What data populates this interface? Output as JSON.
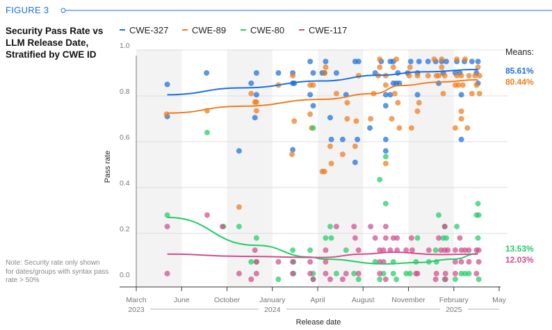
{
  "figure_label": "FIGURE 3",
  "title": "Security Pass Rate vs LLM Release Date, Stratified by CWE ID",
  "note": "Note: Security rate only shown for dates/groups with syntax pass rate > 50%",
  "chart_data": {
    "type": "scatter",
    "xlabel": "Release date",
    "ylabel": "Pass rate",
    "x_unit": "months since March 2023",
    "ylim": [
      0,
      1.0
    ],
    "yticks": [
      "0.0",
      "0.2",
      "0.4",
      "0.6",
      "0.8",
      "1.0"
    ],
    "xticks": [
      {
        "m": 0,
        "label": "March"
      },
      {
        "m": 3,
        "label": "June"
      },
      {
        "m": 7,
        "label": "October"
      },
      {
        "m": 10,
        "label": "January"
      },
      {
        "m": 13,
        "label": "April"
      },
      {
        "m": 17,
        "label": "August"
      },
      {
        "m": 20,
        "label": "November"
      },
      {
        "m": 23,
        "label": "February"
      },
      {
        "m": 26,
        "label": "May"
      }
    ],
    "years": [
      {
        "m": 0,
        "label": "2023"
      },
      {
        "m": 10,
        "label": "2024"
      },
      {
        "m": 23,
        "label": "2025"
      }
    ],
    "means_label": "Means:",
    "series": [
      {
        "name": "CWE-327",
        "color": "#1a6fdc",
        "mean": "85.61%",
        "trend": [
          [
            2.05,
            0.805
          ],
          [
            8,
            0.835
          ],
          [
            13.4,
            0.865
          ],
          [
            18,
            0.89
          ],
          [
            21,
            0.905
          ],
          [
            24.6,
            0.915
          ]
        ],
        "points": [
          [
            2.05,
            0.85
          ],
          [
            2.05,
            0.71
          ],
          [
            5.2,
            0.9
          ],
          [
            8.6,
            0.855
          ],
          [
            8.95,
            0.9
          ],
          [
            8.95,
            0.805
          ],
          [
            8.85,
            0.705
          ],
          [
            7.8,
            0.56
          ],
          [
            10.4,
            0.9
          ],
          [
            11.35,
            0.9
          ],
          [
            11.35,
            0.855
          ],
          [
            11.45,
            0.855
          ],
          [
            11.35,
            0.565
          ],
          [
            12.5,
            0.95
          ],
          [
            12.7,
            0.9
          ],
          [
            12.5,
            0.805
          ],
          [
            12.7,
            0.757
          ],
          [
            13.4,
            0.9
          ],
          [
            13.7,
            0.95
          ],
          [
            13.6,
            0.9
          ],
          [
            14.65,
            0.9
          ],
          [
            15.5,
            0.805
          ],
          [
            14.1,
            0.705
          ],
          [
            14.2,
            0.61
          ],
          [
            15.2,
            0.61
          ],
          [
            16.5,
            0.61
          ],
          [
            16.3,
            0.51
          ],
          [
            16.3,
            0.95
          ],
          [
            16.6,
            0.95
          ],
          [
            17.45,
            0.66
          ],
          [
            17.8,
            0.9
          ],
          [
            18.2,
            0.95
          ],
          [
            18.8,
            0.95
          ],
          [
            18.5,
            0.805
          ],
          [
            18.8,
            0.805
          ],
          [
            18.5,
            0.757
          ],
          [
            18.5,
            0.61
          ],
          [
            18.5,
            0.56
          ],
          [
            19.0,
            0.95
          ],
          [
            19.0,
            0.855
          ],
          [
            19.2,
            0.855
          ],
          [
            19.4,
            0.855
          ],
          [
            19.3,
            0.9
          ],
          [
            20.15,
            0.95
          ],
          [
            20.7,
            0.95
          ],
          [
            19.95,
            0.9
          ],
          [
            20.6,
            0.9
          ],
          [
            20.6,
            0.805
          ],
          [
            21.3,
            0.95
          ],
          [
            21.8,
            0.95
          ],
          [
            22.2,
            0.95
          ],
          [
            22.5,
            0.95
          ],
          [
            22.0,
            0.855
          ],
          [
            22.3,
            0.9
          ],
          [
            23.2,
            0.95
          ],
          [
            23.7,
            0.95
          ],
          [
            24.2,
            0.95
          ],
          [
            24.6,
            0.95
          ],
          [
            23.1,
            0.9
          ],
          [
            23.4,
            0.9
          ],
          [
            24.5,
            0.9
          ],
          [
            23.5,
            0.805
          ],
          [
            23.5,
            0.61
          ],
          [
            24.6,
            0.855
          ]
        ]
      },
      {
        "name": "CWE-89",
        "color": "#f07c1a",
        "mean": "80.44%",
        "trend": [
          [
            2.05,
            0.725
          ],
          [
            8,
            0.755
          ],
          [
            13.4,
            0.785
          ],
          [
            17.7,
            0.81
          ],
          [
            19.5,
            0.845
          ],
          [
            22,
            0.86
          ],
          [
            24.6,
            0.87
          ]
        ],
        "points": [
          [
            2.0,
            0.72
          ],
          [
            5.25,
            0.735
          ],
          [
            8.6,
            0.81
          ],
          [
            8.85,
            0.773
          ],
          [
            8.95,
            0.773
          ],
          [
            8.95,
            0.735
          ],
          [
            10.4,
            0.847
          ],
          [
            11.35,
            0.888
          ],
          [
            12.5,
            0.847
          ],
          [
            12.7,
            0.847
          ],
          [
            12.5,
            0.72
          ],
          [
            11.45,
            0.69
          ],
          [
            12.6,
            0.66
          ],
          [
            11.3,
            0.545
          ],
          [
            7.8,
            0.315
          ],
          [
            13.4,
            0.47
          ],
          [
            13.7,
            0.925
          ],
          [
            13.6,
            0.9
          ],
          [
            16.6,
            0.888
          ],
          [
            14.65,
            0.81
          ],
          [
            15.6,
            0.77
          ],
          [
            15.6,
            0.7
          ],
          [
            16.4,
            0.69
          ],
          [
            14.1,
            0.58
          ],
          [
            16.3,
            0.58
          ],
          [
            15.2,
            0.545
          ],
          [
            14.2,
            0.505
          ],
          [
            13.6,
            0.47
          ],
          [
            18.1,
            0.96
          ],
          [
            19.2,
            0.96
          ],
          [
            18.1,
            0.925
          ],
          [
            19.0,
            0.925
          ],
          [
            18.0,
            0.888
          ],
          [
            18.5,
            0.888
          ],
          [
            18.5,
            0.847
          ],
          [
            17.7,
            0.81
          ],
          [
            19.1,
            0.81
          ],
          [
            19.3,
            0.77
          ],
          [
            17.5,
            0.7
          ],
          [
            18.9,
            0.7
          ],
          [
            19.4,
            0.66
          ],
          [
            20.2,
            0.66
          ],
          [
            18.5,
            0.505
          ],
          [
            20.1,
            0.925
          ],
          [
            20.05,
            0.888
          ],
          [
            20.6,
            0.888
          ],
          [
            21.3,
            0.888
          ],
          [
            20.7,
            0.77
          ],
          [
            20.6,
            0.733
          ],
          [
            21.7,
            0.96
          ],
          [
            22.2,
            0.96
          ],
          [
            21.85,
            0.888
          ],
          [
            22.0,
            0.888
          ],
          [
            22.4,
            0.888
          ],
          [
            22.2,
            0.925
          ],
          [
            22.3,
            0.81
          ],
          [
            23.2,
            0.96
          ],
          [
            23.75,
            0.96
          ],
          [
            23.2,
            0.888
          ],
          [
            23.5,
            0.888
          ],
          [
            24.0,
            0.888
          ],
          [
            24.4,
            0.888
          ],
          [
            24.7,
            0.888
          ],
          [
            23.1,
            0.847
          ],
          [
            23.3,
            0.847
          ],
          [
            23.6,
            0.847
          ],
          [
            24.5,
            0.847
          ],
          [
            24.6,
            0.925
          ],
          [
            24.2,
            0.81
          ],
          [
            24.7,
            0.81
          ],
          [
            23.5,
            0.733
          ],
          [
            23.5,
            0.7
          ],
          [
            23.1,
            0.66
          ],
          [
            23.9,
            0.66
          ]
        ]
      },
      {
        "name": "CWE-80",
        "color": "#22cc66",
        "mean": "13.53%",
        "trend": [
          [
            2.05,
            0.27
          ],
          [
            8.95,
            0.148
          ],
          [
            12.5,
            0.097
          ],
          [
            13.5,
            0.088
          ],
          [
            18.5,
            0.067
          ],
          [
            20.6,
            0.073
          ],
          [
            23,
            0.088
          ],
          [
            24.6,
            0.112
          ]
        ],
        "points": [
          [
            2.05,
            0.28
          ],
          [
            5.25,
            0.64
          ],
          [
            6.7,
            0.23
          ],
          [
            7.8,
            0.23
          ],
          [
            8.95,
            0.18
          ],
          [
            8.6,
            0.076
          ],
          [
            8.95,
            0.076
          ],
          [
            11.35,
            0.127
          ],
          [
            12.5,
            0.127
          ],
          [
            11.4,
            0.076
          ],
          [
            11.4,
            0.025
          ],
          [
            12.7,
            0.025
          ],
          [
            12.7,
            0.66
          ],
          [
            10.4,
            0.0
          ],
          [
            12.7,
            0.0
          ],
          [
            18.1,
            0.435
          ],
          [
            18.5,
            0.535
          ],
          [
            18.5,
            0.33
          ],
          [
            22.0,
            0.28
          ],
          [
            24.6,
            0.33
          ],
          [
            24.5,
            0.28
          ],
          [
            24.65,
            0.28
          ],
          [
            14.1,
            0.23
          ],
          [
            13.7,
            0.18
          ],
          [
            14.2,
            0.18
          ],
          [
            15.5,
            0.127
          ],
          [
            22.4,
            0.23
          ],
          [
            23.2,
            0.23
          ],
          [
            20.6,
            0.18
          ],
          [
            22.3,
            0.18
          ],
          [
            22.5,
            0.18
          ],
          [
            24.6,
            0.18
          ],
          [
            21.8,
            0.127
          ],
          [
            18.35,
            0.025
          ],
          [
            19.0,
            0.025
          ],
          [
            19.85,
            0.025
          ],
          [
            20.1,
            0.025
          ],
          [
            23.5,
            0.025
          ],
          [
            23.75,
            0.025
          ],
          [
            24.0,
            0.025
          ],
          [
            14.65,
            0.025
          ],
          [
            16.2,
            0.025
          ],
          [
            17.8,
            0.076
          ],
          [
            19.0,
            0.076
          ],
          [
            20.5,
            0.076
          ],
          [
            21.35,
            0.076
          ],
          [
            21.85,
            0.076
          ],
          [
            16.6,
            0.0
          ],
          [
            18.1,
            0.0
          ],
          [
            19.2,
            0.0
          ],
          [
            22.4,
            0.0
          ],
          [
            23.1,
            0.0
          ],
          [
            24.65,
            0.0
          ]
        ]
      },
      {
        "name": "CWE-117",
        "color": "#d04c8a",
        "mean": "12.03%",
        "trend": [
          [
            2.05,
            0.11
          ],
          [
            8,
            0.1
          ],
          [
            13.4,
            0.095
          ],
          [
            17,
            0.11
          ],
          [
            19,
            0.118
          ],
          [
            22,
            0.108
          ],
          [
            24.6,
            0.11
          ]
        ],
        "points": [
          [
            2.05,
            0.23
          ],
          [
            5.25,
            0.28
          ],
          [
            6.6,
            0.23
          ],
          [
            8.85,
            0.127
          ],
          [
            2.05,
            0.025
          ],
          [
            7.8,
            0.025
          ],
          [
            8.95,
            0.025
          ],
          [
            8.95,
            0.076
          ],
          [
            10.4,
            0.076
          ],
          [
            11.35,
            0.076
          ],
          [
            11.35,
            0.025
          ],
          [
            12.5,
            0.076
          ],
          [
            12.5,
            0.025
          ],
          [
            8.6,
            0.0
          ],
          [
            12.7,
            0.0
          ],
          [
            14.65,
            0.23
          ],
          [
            16.2,
            0.23
          ],
          [
            17.5,
            0.23
          ],
          [
            18.5,
            0.23
          ],
          [
            22.4,
            0.23
          ],
          [
            16.3,
            0.18
          ],
          [
            17.8,
            0.18
          ],
          [
            18.5,
            0.18
          ],
          [
            19.0,
            0.18
          ],
          [
            19.25,
            0.18
          ],
          [
            20.2,
            0.18
          ],
          [
            22.0,
            0.18
          ],
          [
            23.4,
            0.18
          ],
          [
            13.7,
            0.127
          ],
          [
            16.6,
            0.127
          ],
          [
            18.1,
            0.127
          ],
          [
            18.35,
            0.127
          ],
          [
            18.8,
            0.127
          ],
          [
            19.25,
            0.127
          ],
          [
            19.85,
            0.127
          ],
          [
            20.25,
            0.127
          ],
          [
            21.35,
            0.127
          ],
          [
            22.15,
            0.127
          ],
          [
            22.4,
            0.127
          ],
          [
            22.6,
            0.127
          ],
          [
            23.1,
            0.127
          ],
          [
            23.5,
            0.127
          ],
          [
            23.75,
            0.127
          ],
          [
            24.0,
            0.127
          ],
          [
            24.5,
            0.127
          ],
          [
            24.65,
            0.127
          ],
          [
            13.7,
            0.076
          ],
          [
            18.1,
            0.076
          ],
          [
            18.35,
            0.076
          ],
          [
            23.1,
            0.076
          ],
          [
            23.5,
            0.076
          ],
          [
            24.0,
            0.076
          ],
          [
            24.65,
            0.076
          ],
          [
            13.7,
            0.025
          ],
          [
            15.5,
            0.025
          ],
          [
            16.6,
            0.025
          ],
          [
            18.1,
            0.025
          ],
          [
            20.5,
            0.025
          ],
          [
            20.6,
            0.025
          ],
          [
            21.85,
            0.025
          ],
          [
            22.45,
            0.025
          ],
          [
            23.1,
            0.025
          ],
          [
            24.5,
            0.025
          ],
          [
            14.1,
            0.0
          ],
          [
            15.2,
            0.0
          ],
          [
            18.5,
            0.0
          ],
          [
            21.8,
            0.0
          ],
          [
            22.45,
            0.0
          ]
        ]
      }
    ]
  }
}
